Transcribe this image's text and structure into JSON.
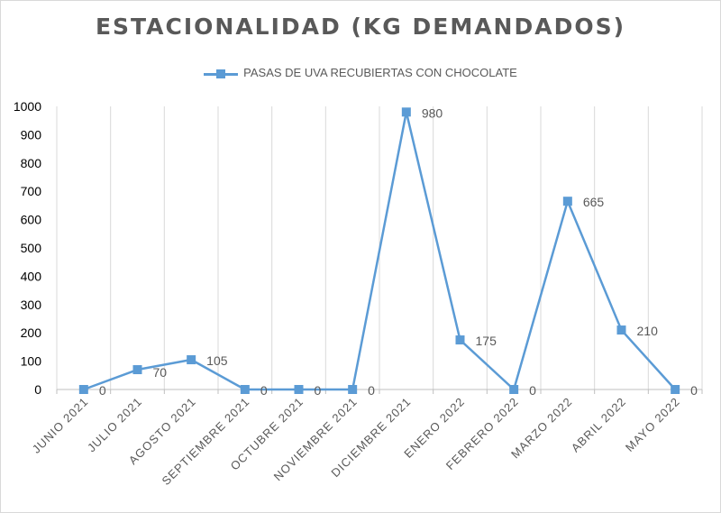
{
  "chart_data": {
    "type": "line",
    "title": "ESTACIONALIDAD (KG DEMANDADOS)",
    "xlabel": "",
    "ylabel": "",
    "ylim": [
      0,
      1000
    ],
    "yticks": [
      "0",
      "100",
      "200",
      "300",
      "400",
      "500",
      "600",
      "700",
      "800",
      "900",
      "1000"
    ],
    "categories": [
      "JUNIO 2021",
      "JULIO 2021",
      "AGOSTO 2021",
      "SEPTIEMBRE 2021",
      "OCTUBRE 2021",
      "NOVIEMBRE 2021",
      "DICIEMBRE 2021",
      "ENERO 2022",
      "FEBRERO 2022",
      "MARZO 2022",
      "ABRIL 2022",
      "MAYO 2022"
    ],
    "series": [
      {
        "name": "PASAS DE UVA RECUBIERTAS CON CHOCOLATE",
        "values": [
          0,
          70,
          105,
          0,
          0,
          0,
          980,
          175,
          0,
          665,
          210,
          0
        ],
        "color": "#5b9bd5"
      }
    ],
    "legend_position": "top",
    "grid": "vertical"
  }
}
